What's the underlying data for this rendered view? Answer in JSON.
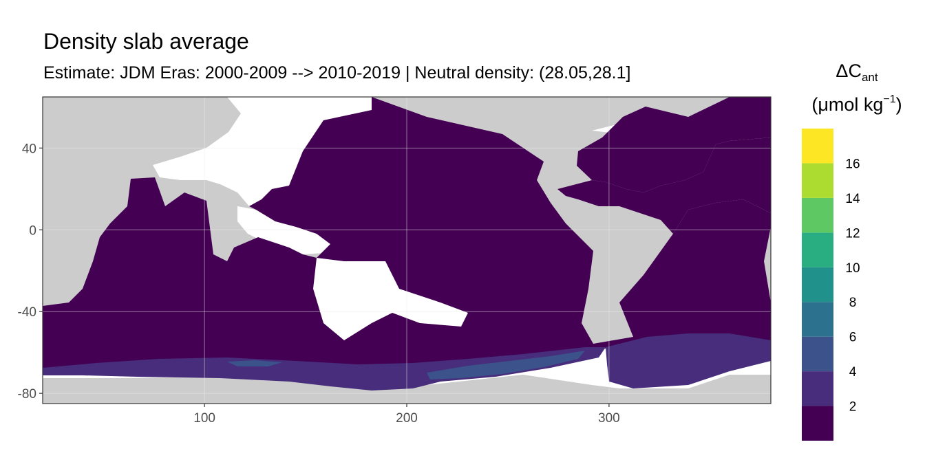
{
  "title": "Density slab average",
  "subtitle": "Estimate: JDM Eras: 2000-2009 --> 2010-2019 | Neutral density: (28.05,28.1]",
  "legend": {
    "symbol": "ΔC",
    "subscript": "ant",
    "unit_prefix": "(μmol kg",
    "unit_exponent": "−1",
    "unit_suffix": ")"
  },
  "colors": {
    "land": "#cccccc",
    "no_data": "#ffffff",
    "scale": [
      "#440154",
      "#472d7b",
      "#3b528b",
      "#2c728e",
      "#21918c",
      "#28ae80",
      "#5ec962",
      "#addc30",
      "#fde725"
    ]
  },
  "chart_data": {
    "type": "heatmap",
    "title": "Density slab average",
    "subtitle": "Estimate: JDM Eras: 2000-2009 --> 2010-2019 | Neutral density: (28.05,28.1]",
    "xlabel": "",
    "ylabel": "",
    "xlim": [
      20,
      380
    ],
    "ylim": [
      -85,
      65
    ],
    "x_ticks": [
      100,
      200,
      300
    ],
    "y_ticks": [
      40,
      0,
      -40,
      -80
    ],
    "grid": true,
    "legend_position": "right",
    "color_scale": {
      "breaks": [
        2,
        4,
        6,
        8,
        10,
        12,
        14,
        16
      ],
      "bin_edges": [
        0,
        2,
        4,
        6,
        8,
        10,
        12,
        14,
        16,
        18
      ]
    },
    "regions": [
      {
        "area": "most ocean basins (Pacific, Indian, Atlantic)",
        "value_bin": [
          0,
          2
        ]
      },
      {
        "area": "Weddell Sea / South Atlantic sector (~280-380 E, -50 to -70)",
        "value_bin": [
          2,
          4
        ]
      },
      {
        "area": "Southern Ocean band (~45-250 E, -63 to -70)",
        "value_bin": [
          2,
          4
        ]
      },
      {
        "area": "Ross / Amundsen sector (~230-280 E, -66 to -72)",
        "value_bin": [
          4,
          6
        ]
      }
    ]
  }
}
